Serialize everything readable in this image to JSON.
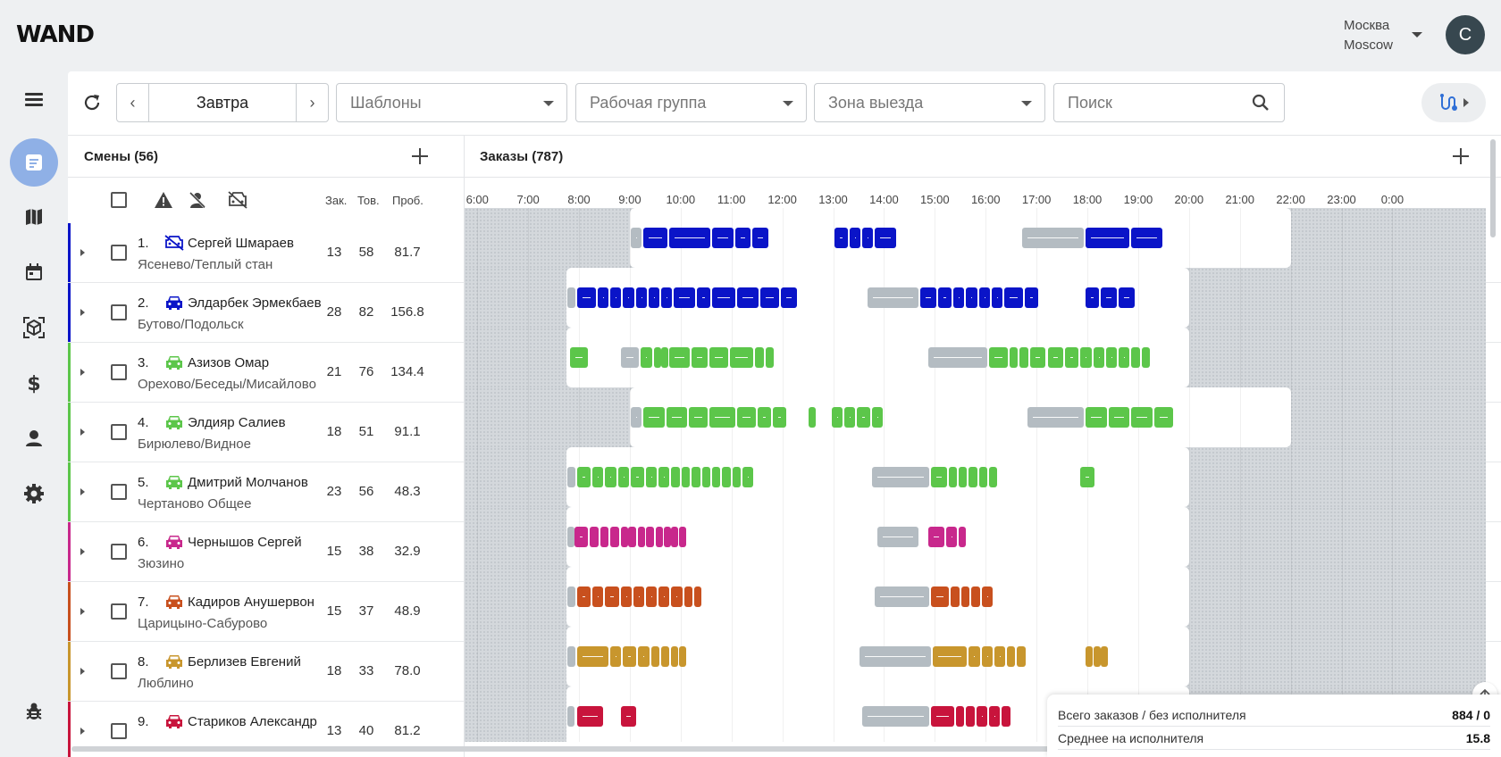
{
  "app": {
    "logo": "WAND"
  },
  "city": {
    "line1": "Москва",
    "line2": "Moscow"
  },
  "user": {
    "initial": "C"
  },
  "toolbar": {
    "date_label": "Завтра",
    "templates_placeholder": "Шаблоны",
    "workgroup_placeholder": "Рабочая группа",
    "zone_placeholder": "Зона выезда",
    "search_placeholder": "Поиск"
  },
  "shifts": {
    "title": "Смены (56)",
    "col_orders": "Зак.",
    "col_goods": "Тов.",
    "col_mileage": "Проб."
  },
  "orders": {
    "title": "Заказы (787)"
  },
  "timeline": {
    "hours": [
      "6:00",
      "7:00",
      "8:00",
      "9:00",
      "10:00",
      "11:00",
      "12:00",
      "13:00",
      "14:00",
      "15:00",
      "16:00",
      "17:00",
      "18:00",
      "19:00",
      "20:00",
      "21:00",
      "22:00",
      "23:00",
      "0:00"
    ]
  },
  "colors": {
    "blue": "#0a14c8",
    "green": "#5cc64a",
    "magenta": "#c8288c",
    "orange": "#c8501e",
    "gold": "#c8962d",
    "crimson": "#c8143c",
    "grey": "#b4bcc2"
  },
  "rows": [
    {
      "num": "1.",
      "name": "Сергей Шмараев",
      "zone": "Ясенево/Теплый стан",
      "orders": "13",
      "goods": "58",
      "mileage": "81.7",
      "color": "blue",
      "car": "car-off-icon",
      "shift": [
        9.0,
        22.0
      ],
      "segs": [
        [
          9.0,
          9.25,
          "grey"
        ],
        [
          9.25,
          9.75,
          "c"
        ],
        [
          9.75,
          10.6,
          "c"
        ],
        [
          10.6,
          11.05,
          "c"
        ],
        [
          11.05,
          11.4,
          "c"
        ],
        [
          11.4,
          11.75,
          "c"
        ],
        [
          13.0,
          13.3,
          "c"
        ],
        [
          13.3,
          13.55,
          "c"
        ],
        [
          13.55,
          13.8,
          "c"
        ],
        [
          13.8,
          14.25,
          "c"
        ],
        [
          16.7,
          17.95,
          "grey"
        ],
        [
          17.95,
          18.85,
          "c"
        ],
        [
          18.85,
          19.5,
          "c"
        ]
      ]
    },
    {
      "num": "2.",
      "name": "Элдарбек Эрмекбаев",
      "zone": "Бутово/Подольск",
      "orders": "28",
      "goods": "82",
      "mileage": "156.8",
      "color": "blue",
      "car": "car-icon",
      "shift": [
        7.75,
        20.0
      ],
      "segs": [
        [
          7.75,
          7.95,
          "grey"
        ],
        [
          7.95,
          8.35,
          "c"
        ],
        [
          8.35,
          8.6,
          "c"
        ],
        [
          8.6,
          8.85,
          "c"
        ],
        [
          8.85,
          9.1,
          "c"
        ],
        [
          9.1,
          9.35,
          "c"
        ],
        [
          9.35,
          9.6,
          "c"
        ],
        [
          9.6,
          9.85,
          "c"
        ],
        [
          9.85,
          10.3,
          "c"
        ],
        [
          10.3,
          10.6,
          "c"
        ],
        [
          10.6,
          11.1,
          "c"
        ],
        [
          11.1,
          11.55,
          "c"
        ],
        [
          11.55,
          11.95,
          "c"
        ],
        [
          11.95,
          12.3,
          "c"
        ],
        [
          13.65,
          14.7,
          "grey"
        ],
        [
          14.7,
          15.05,
          "c"
        ],
        [
          15.05,
          15.35,
          "c"
        ],
        [
          15.35,
          15.6,
          "c"
        ],
        [
          15.6,
          15.85,
          "c"
        ],
        [
          15.85,
          16.1,
          "c"
        ],
        [
          16.1,
          16.35,
          "c"
        ],
        [
          16.35,
          16.75,
          "c"
        ],
        [
          16.75,
          17.05,
          "c"
        ],
        [
          17.95,
          18.25,
          "c"
        ],
        [
          18.25,
          18.6,
          "c"
        ],
        [
          18.6,
          18.95,
          "c"
        ]
      ]
    },
    {
      "num": "3.",
      "name": "Азизов Омар",
      "zone": "Орехово/Беседы/Мисайлово",
      "orders": "21",
      "goods": "76",
      "mileage": "134.4",
      "color": "green",
      "car": "car-icon",
      "shift": [
        7.75,
        20.0
      ],
      "segs": [
        [
          7.8,
          8.2,
          "c"
        ],
        [
          8.8,
          9.2,
          "grey"
        ],
        [
          9.2,
          9.45,
          "c"
        ],
        [
          9.45,
          9.6,
          "c"
        ],
        [
          9.6,
          9.75,
          "c"
        ],
        [
          9.75,
          10.2,
          "c"
        ],
        [
          10.2,
          10.55,
          "c"
        ],
        [
          10.55,
          10.95,
          "c"
        ],
        [
          10.95,
          11.45,
          "c"
        ],
        [
          11.45,
          11.65,
          "c"
        ],
        [
          11.65,
          11.85,
          "c"
        ],
        [
          14.85,
          16.05,
          "grey"
        ],
        [
          16.05,
          16.45,
          "c"
        ],
        [
          16.45,
          16.65,
          "c"
        ],
        [
          16.65,
          16.85,
          "c"
        ],
        [
          16.85,
          17.2,
          "c"
        ],
        [
          17.2,
          17.55,
          "c"
        ],
        [
          17.55,
          17.85,
          "c"
        ],
        [
          17.85,
          18.1,
          "c"
        ],
        [
          18.1,
          18.35,
          "c"
        ],
        [
          18.35,
          18.6,
          "c"
        ],
        [
          18.6,
          18.85,
          "c"
        ],
        [
          18.85,
          19.05,
          "c"
        ],
        [
          19.05,
          19.25,
          "c"
        ]
      ]
    },
    {
      "num": "4.",
      "name": "Элдияр Салиев",
      "zone": "Бирюлево/Видное",
      "orders": "18",
      "goods": "51",
      "mileage": "91.1",
      "color": "green",
      "car": "car-icon",
      "shift": [
        9.0,
        22.0
      ],
      "segs": [
        [
          9.0,
          9.25,
          "grey"
        ],
        [
          9.25,
          9.7,
          "c"
        ],
        [
          9.7,
          10.15,
          "c"
        ],
        [
          10.15,
          10.55,
          "c"
        ],
        [
          10.55,
          11.1,
          "c"
        ],
        [
          11.1,
          11.5,
          "c"
        ],
        [
          11.5,
          11.8,
          "c"
        ],
        [
          11.8,
          12.1,
          "c"
        ],
        [
          12.5,
          12.65,
          "c"
        ],
        [
          12.95,
          13.2,
          "c"
        ],
        [
          13.2,
          13.45,
          "c"
        ],
        [
          13.45,
          13.75,
          "c"
        ],
        [
          13.75,
          14.0,
          "c"
        ],
        [
          16.8,
          17.95,
          "grey"
        ],
        [
          17.95,
          18.4,
          "c"
        ],
        [
          18.4,
          18.85,
          "c"
        ],
        [
          18.85,
          19.3,
          "c"
        ],
        [
          19.3,
          19.7,
          "c"
        ]
      ]
    },
    {
      "num": "5.",
      "name": "Дмитрий Молчанов",
      "zone": "Чертаново Общее",
      "orders": "23",
      "goods": "56",
      "mileage": "48.3",
      "color": "green",
      "car": "car-icon",
      "shift": [
        7.75,
        20.0
      ],
      "segs": [
        [
          7.75,
          7.95,
          "grey"
        ],
        [
          7.95,
          8.25,
          "c"
        ],
        [
          8.25,
          8.5,
          "c"
        ],
        [
          8.5,
          8.75,
          "c"
        ],
        [
          8.75,
          9.0,
          "c"
        ],
        [
          9.0,
          9.3,
          "c"
        ],
        [
          9.3,
          9.55,
          "c"
        ],
        [
          9.55,
          9.8,
          "c"
        ],
        [
          9.8,
          10.0,
          "c"
        ],
        [
          10.0,
          10.2,
          "c"
        ],
        [
          10.2,
          10.4,
          "c"
        ],
        [
          10.4,
          10.6,
          "c"
        ],
        [
          10.6,
          10.8,
          "c"
        ],
        [
          10.8,
          11.0,
          "c"
        ],
        [
          11.0,
          11.2,
          "c"
        ],
        [
          11.2,
          11.45,
          "c"
        ],
        [
          13.75,
          14.9,
          "grey"
        ],
        [
          14.9,
          15.25,
          "c"
        ],
        [
          15.25,
          15.45,
          "c"
        ],
        [
          15.45,
          15.65,
          "c"
        ],
        [
          15.65,
          15.85,
          "c"
        ],
        [
          15.85,
          16.05,
          "c"
        ],
        [
          16.05,
          16.25,
          "c"
        ],
        [
          17.85,
          18.15,
          "c"
        ]
      ]
    },
    {
      "num": "6.",
      "name": "Чернышов Сергей",
      "zone": "Зюзино",
      "orders": "15",
      "goods": "38",
      "mileage": "32.9",
      "color": "magenta",
      "car": "car-icon",
      "shift": [
        7.75,
        20.0
      ],
      "segs": [
        [
          7.75,
          7.9,
          "grey"
        ],
        [
          7.9,
          8.2,
          "c"
        ],
        [
          8.2,
          8.4,
          "c"
        ],
        [
          8.4,
          8.6,
          "c"
        ],
        [
          8.6,
          8.8,
          "c"
        ],
        [
          8.8,
          8.95,
          "c"
        ],
        [
          8.95,
          9.15,
          "c"
        ],
        [
          9.15,
          9.3,
          "c"
        ],
        [
          9.3,
          9.5,
          "c"
        ],
        [
          9.5,
          9.65,
          "c"
        ],
        [
          9.65,
          9.8,
          "c"
        ],
        [
          9.8,
          9.95,
          "c"
        ],
        [
          9.95,
          10.05,
          "c"
        ],
        [
          13.85,
          14.7,
          "grey"
        ],
        [
          14.85,
          15.2,
          "c"
        ],
        [
          15.2,
          15.45,
          "c"
        ],
        [
          15.45,
          15.6,
          "c"
        ]
      ]
    },
    {
      "num": "7.",
      "name": "Кадиров Анушервон",
      "zone": "Царицыно-Сабурово",
      "orders": "15",
      "goods": "37",
      "mileage": "48.9",
      "color": "orange",
      "car": "car-icon",
      "shift": [
        7.75,
        20.0
      ],
      "segs": [
        [
          7.75,
          7.95,
          "grey"
        ],
        [
          7.95,
          8.25,
          "c"
        ],
        [
          8.25,
          8.5,
          "c"
        ],
        [
          8.5,
          8.8,
          "c"
        ],
        [
          8.8,
          9.05,
          "c"
        ],
        [
          9.05,
          9.3,
          "c"
        ],
        [
          9.3,
          9.55,
          "c"
        ],
        [
          9.55,
          9.8,
          "c"
        ],
        [
          9.8,
          10.05,
          "c"
        ],
        [
          10.05,
          10.25,
          "c"
        ],
        [
          10.25,
          10.4,
          "c"
        ],
        [
          13.8,
          14.9,
          "grey"
        ],
        [
          14.9,
          15.3,
          "c"
        ],
        [
          15.3,
          15.5,
          "c"
        ],
        [
          15.5,
          15.7,
          "c"
        ],
        [
          15.7,
          15.9,
          "c"
        ],
        [
          15.9,
          16.15,
          "c"
        ]
      ]
    },
    {
      "num": "8.",
      "name": "Берлизев Евгений",
      "zone": "Люблино",
      "orders": "18",
      "goods": "33",
      "mileage": "78.0",
      "color": "gold",
      "car": "car-icon",
      "shift": [
        7.75,
        20.0
      ],
      "segs": [
        [
          7.75,
          7.95,
          "grey"
        ],
        [
          7.95,
          8.6,
          "c"
        ],
        [
          8.6,
          8.85,
          "c"
        ],
        [
          8.85,
          9.15,
          "c"
        ],
        [
          9.15,
          9.4,
          "c"
        ],
        [
          9.4,
          9.6,
          "c"
        ],
        [
          9.6,
          9.8,
          "c"
        ],
        [
          9.8,
          9.95,
          "c"
        ],
        [
          9.95,
          10.1,
          "c"
        ],
        [
          13.5,
          14.95,
          "grey"
        ],
        [
          14.95,
          15.65,
          "c"
        ],
        [
          15.65,
          15.9,
          "c"
        ],
        [
          15.9,
          16.15,
          "c"
        ],
        [
          16.15,
          16.4,
          "c"
        ],
        [
          16.4,
          16.6,
          "c"
        ],
        [
          16.6,
          16.8,
          "c"
        ],
        [
          17.95,
          18.1,
          "c"
        ],
        [
          18.1,
          18.25,
          "c"
        ],
        [
          18.25,
          18.4,
          "c"
        ]
      ]
    },
    {
      "num": "9.",
      "name": "Стариков Александр",
      "zone": "",
      "orders": "13",
      "goods": "40",
      "mileage": "81.2",
      "color": "crimson",
      "car": "car-icon",
      "shift": [
        7.75,
        20.0
      ],
      "segs": [
        [
          7.75,
          7.9,
          "grey"
        ],
        [
          7.95,
          8.5,
          "c"
        ],
        [
          8.8,
          9.15,
          "c"
        ],
        [
          13.55,
          14.9,
          "grey"
        ],
        [
          14.9,
          15.4,
          "c"
        ],
        [
          15.4,
          15.6,
          "c"
        ],
        [
          15.6,
          15.8,
          "c"
        ],
        [
          15.8,
          16.05,
          "c"
        ],
        [
          16.05,
          16.3,
          "c"
        ],
        [
          16.3,
          16.5,
          "c"
        ]
      ]
    }
  ],
  "summary": {
    "total_label": "Всего заказов / без исполнителя",
    "total_value": "884 / 0",
    "avg_label": "Среднее на исполнителя",
    "avg_value": "15.8"
  }
}
